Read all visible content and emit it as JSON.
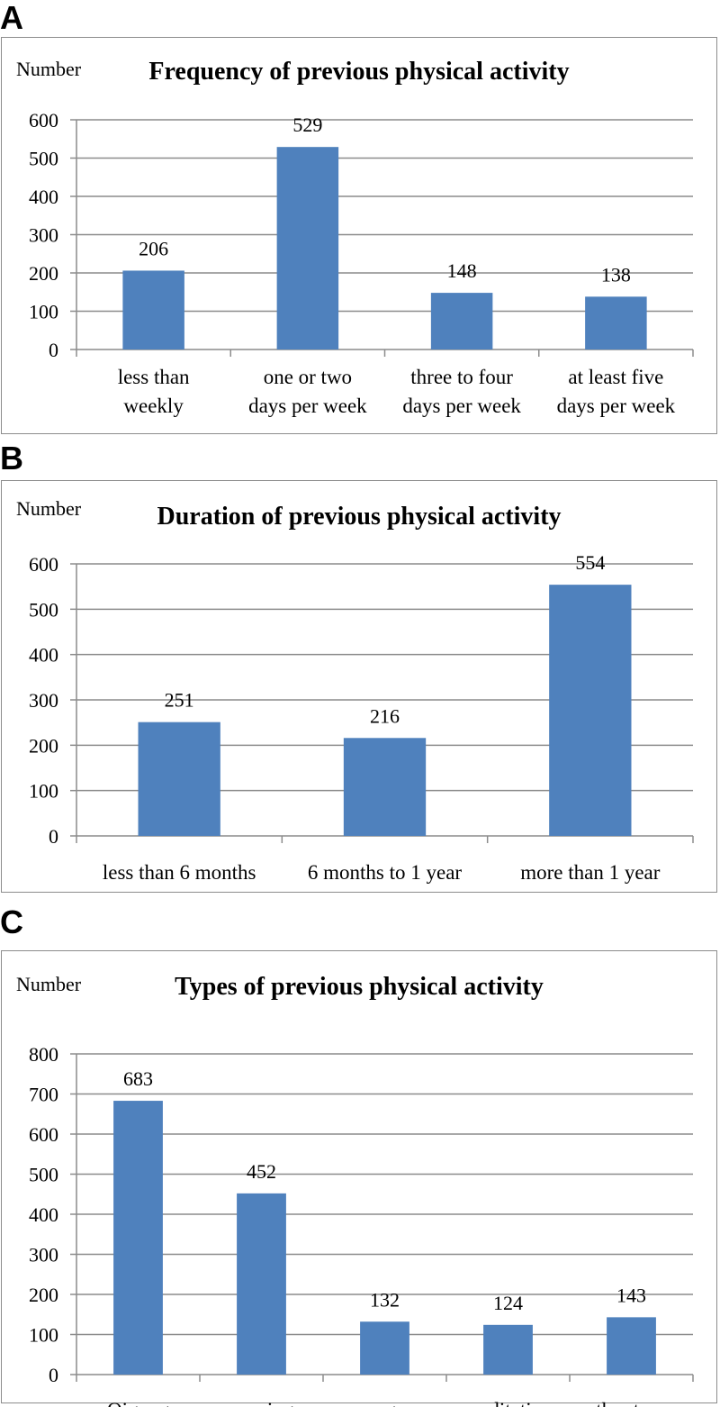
{
  "panels": [
    {
      "letter": "A",
      "chart_data": {
        "type": "bar",
        "title": "Frequency of previous physical activity",
        "ylabel": "Number",
        "xlabel": "",
        "ylim": [
          0,
          600
        ],
        "yticks": [
          0,
          100,
          200,
          300,
          400,
          500,
          600
        ],
        "grid": true,
        "categories": [
          [
            "less than",
            "weekly"
          ],
          [
            "one or two",
            "days per week"
          ],
          [
            "three to four",
            "days per week"
          ],
          [
            "at least five",
            "days per week"
          ]
        ],
        "values": [
          206,
          529,
          148,
          138
        ],
        "bar_color": "#4f81bd"
      }
    },
    {
      "letter": "B",
      "chart_data": {
        "type": "bar",
        "title": "Duration of previous physical activity",
        "ylabel": "Number",
        "xlabel": "",
        "ylim": [
          0,
          600
        ],
        "yticks": [
          0,
          100,
          200,
          300,
          400,
          500,
          600
        ],
        "grid": true,
        "categories": [
          [
            "less than 6 months"
          ],
          [
            "6 months to 1 year"
          ],
          [
            "more than 1 year"
          ]
        ],
        "values": [
          251,
          216,
          554
        ],
        "bar_color": "#4f81bd"
      }
    },
    {
      "letter": "C",
      "chart_data": {
        "type": "bar",
        "title": "Types of previous physical activity",
        "ylabel": "Number",
        "xlabel": "",
        "ylim": [
          0,
          800
        ],
        "yticks": [
          0,
          100,
          200,
          300,
          400,
          500,
          600,
          700,
          800
        ],
        "grid": true,
        "categories": [
          [
            "Qigong"
          ],
          [
            "running"
          ],
          [
            "yoga"
          ],
          [
            "meditation"
          ],
          [
            "other types"
          ]
        ],
        "values": [
          683,
          452,
          132,
          124,
          143
        ],
        "bar_color": "#4f81bd"
      }
    }
  ]
}
